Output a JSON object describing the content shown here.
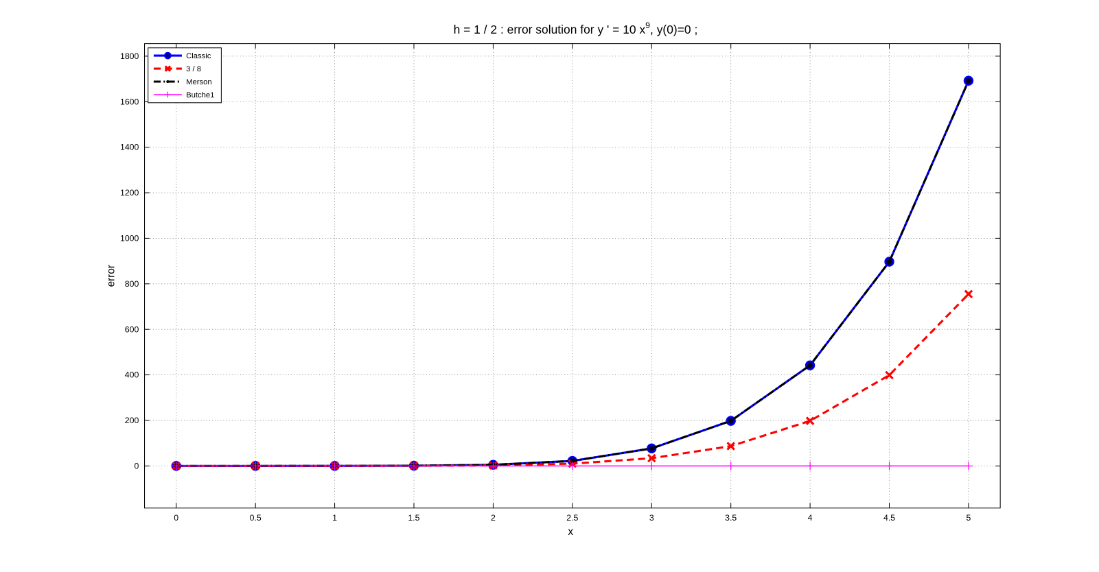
{
  "chart_data": {
    "type": "line",
    "title": "h = 1 / 2 :      error solution for    y ' = 10 x",
    "title_superscript": "9",
    "title_suffix": ",   y(0)=0 ;",
    "x_label": "x",
    "y_label": "error",
    "x": [
      0,
      0.5,
      1,
      1.5,
      2,
      2.5,
      3,
      3.5,
      4,
      4.5,
      5
    ],
    "series": [
      {
        "name": "Classic",
        "color": "#0000ff",
        "line_style": "solid",
        "marker": "o",
        "values": [
          0,
          0,
          0.1,
          1,
          5,
          22,
          77,
          198,
          442,
          897,
          1692
        ]
      },
      {
        "name": "3 / 8",
        "color": "#ff0000",
        "line_style": "dashed",
        "marker": "x",
        "values": [
          0,
          0,
          0,
          0.5,
          2,
          10,
          34,
          87,
          198,
          399,
          755
        ]
      },
      {
        "name": "Merson",
        "color": "#000000",
        "line_style": "dashdot",
        "marker": ".",
        "values": [
          0,
          0,
          0.1,
          1,
          5,
          22,
          77,
          198,
          442,
          897,
          1692
        ]
      },
      {
        "name": "Butche1",
        "color": "#ff00ff",
        "line_style": "solid",
        "marker": "+",
        "values": [
          0,
          0,
          0,
          0,
          0,
          0,
          0,
          0,
          0,
          0,
          0
        ]
      }
    ],
    "xlim": [
      -0.2,
      5.2
    ],
    "ylim": [
      -185,
      1855
    ],
    "xticks": [
      0,
      0.5,
      1,
      1.5,
      2,
      2.5,
      3,
      3.5,
      4,
      4.5,
      5
    ],
    "yticks": [
      0,
      200,
      400,
      600,
      800,
      1000,
      1200,
      1400,
      1600,
      1800
    ],
    "grid": true,
    "legend_position": "upper-left"
  }
}
